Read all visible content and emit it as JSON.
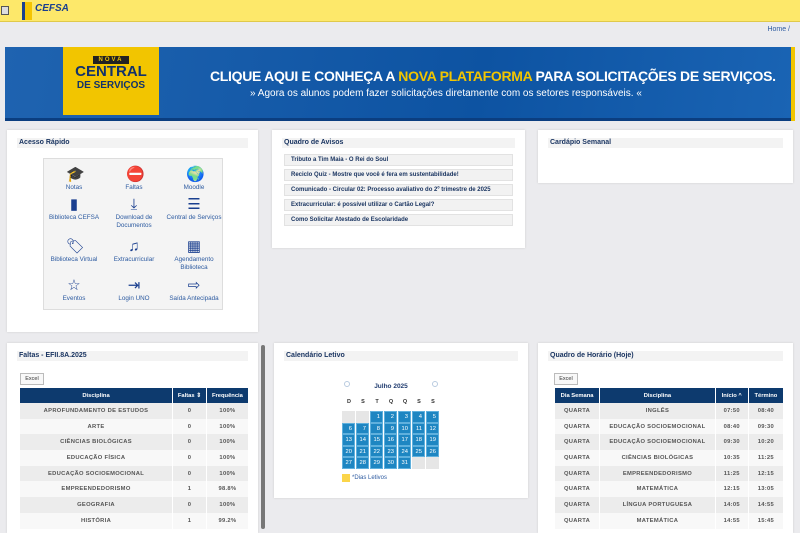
{
  "header": {
    "logo_text": "CEFSA",
    "breadcrumb": "Home /"
  },
  "banner": {
    "badge_top": "NOVA",
    "badge_main": "CENTRAL",
    "badge_sub": "DE SERVIÇOS",
    "headline_a": "CLIQUE AQUI E CONHEÇA A ",
    "headline_highlight": "NOVA PLATAFORMA",
    "headline_b": " PARA SOLICITAÇÕES DE SERVIÇOS.",
    "subline": "» Agora os alunos podem fazer solicitações diretamente com os setores responsáveis. «"
  },
  "quick": {
    "title": "Acesso Rápido",
    "items": [
      {
        "label": "Notas",
        "icon": "graduation-cap"
      },
      {
        "label": "Faltas",
        "icon": "minus-circle"
      },
      {
        "label": "Moodle",
        "icon": "globe"
      },
      {
        "label": "Biblioteca CEFSA",
        "icon": "book"
      },
      {
        "label": "Download de Documentos",
        "icon": "download"
      },
      {
        "label": "Central de Serviços",
        "icon": "list"
      },
      {
        "label": "Biblioteca Virtual",
        "icon": "tags"
      },
      {
        "label": "Extracurricular",
        "icon": "music"
      },
      {
        "label": "Agendamento Biblioteca",
        "icon": "calendar"
      },
      {
        "label": "Eventos",
        "icon": "star"
      },
      {
        "label": "Login UNO",
        "icon": "sign-in"
      },
      {
        "label": "Saída Antecipada",
        "icon": "sign-out"
      }
    ]
  },
  "notices": {
    "title": "Quadro de Avisos",
    "items": [
      "Tributo a Tim Maia - O Rei do Soul",
      "Reciclo Quiz - Mostre que você é fera em sustentabilidade!",
      "Comunicado - Circular 02: Processo avaliativo do 2º trimestre de 2025",
      "Extracurricular: é possível utilizar o Cartão Legal?",
      "Como Solicitar Atestado de Escolaridade"
    ]
  },
  "menu": {
    "title": "Cardápio Semanal"
  },
  "absences": {
    "title": "Faltas - EFII.8A.2025",
    "excel": "Excel",
    "columns": [
      "Disciplina",
      "Faltas ⇕",
      "Frequência"
    ],
    "rows": [
      [
        "APROFUNDAMENTO DE ESTUDOS",
        "0",
        "100%"
      ],
      [
        "ARTE",
        "0",
        "100%"
      ],
      [
        "CIÊNCIAS BIOLÓGICAS",
        "0",
        "100%"
      ],
      [
        "EDUCAÇÃO FÍSICA",
        "0",
        "100%"
      ],
      [
        "EDUCAÇÃO SOCIOEMOCIONAL",
        "0",
        "100%"
      ],
      [
        "EMPREENDEDORISMO",
        "1",
        "98.8%"
      ],
      [
        "GEOGRAFIA",
        "0",
        "100%"
      ],
      [
        "HISTÓRIA",
        "1",
        "99.2%"
      ]
    ]
  },
  "calendar": {
    "title": "Calendário Letivo",
    "month": "Julho 2025",
    "weekdays": [
      "D",
      "S",
      "T",
      "Q",
      "Q",
      "S",
      "S"
    ],
    "leading_blanks": 2,
    "days": 31,
    "legend": "*Dias Letivos",
    "legend_color": "#fbd54a",
    "day_color": "#1e86c2"
  },
  "schedule": {
    "title": "Quadro de Horário (Hoje)",
    "excel": "Excel",
    "columns": [
      "Dia Semana",
      "Disciplina",
      "Início ^",
      "Término"
    ],
    "rows": [
      [
        "QUARTA",
        "INGLÊS",
        "07:50",
        "08:40"
      ],
      [
        "QUARTA",
        "EDUCAÇÃO SOCIOEMOCIONAL",
        "08:40",
        "09:30"
      ],
      [
        "QUARTA",
        "EDUCAÇÃO SOCIOEMOCIONAL",
        "09:30",
        "10:20"
      ],
      [
        "QUARTA",
        "CIÊNCIAS BIOLÓGICAS",
        "10:35",
        "11:25"
      ],
      [
        "QUARTA",
        "EMPREENDEDORISMO",
        "11:25",
        "12:15"
      ],
      [
        "QUARTA",
        "MATEMÁTICA",
        "12:15",
        "13:05"
      ],
      [
        "QUARTA",
        "LÍNGUA PORTUGUESA",
        "14:05",
        "14:55"
      ],
      [
        "QUARTA",
        "MATEMÁTICA",
        "14:55",
        "15:45"
      ]
    ]
  }
}
